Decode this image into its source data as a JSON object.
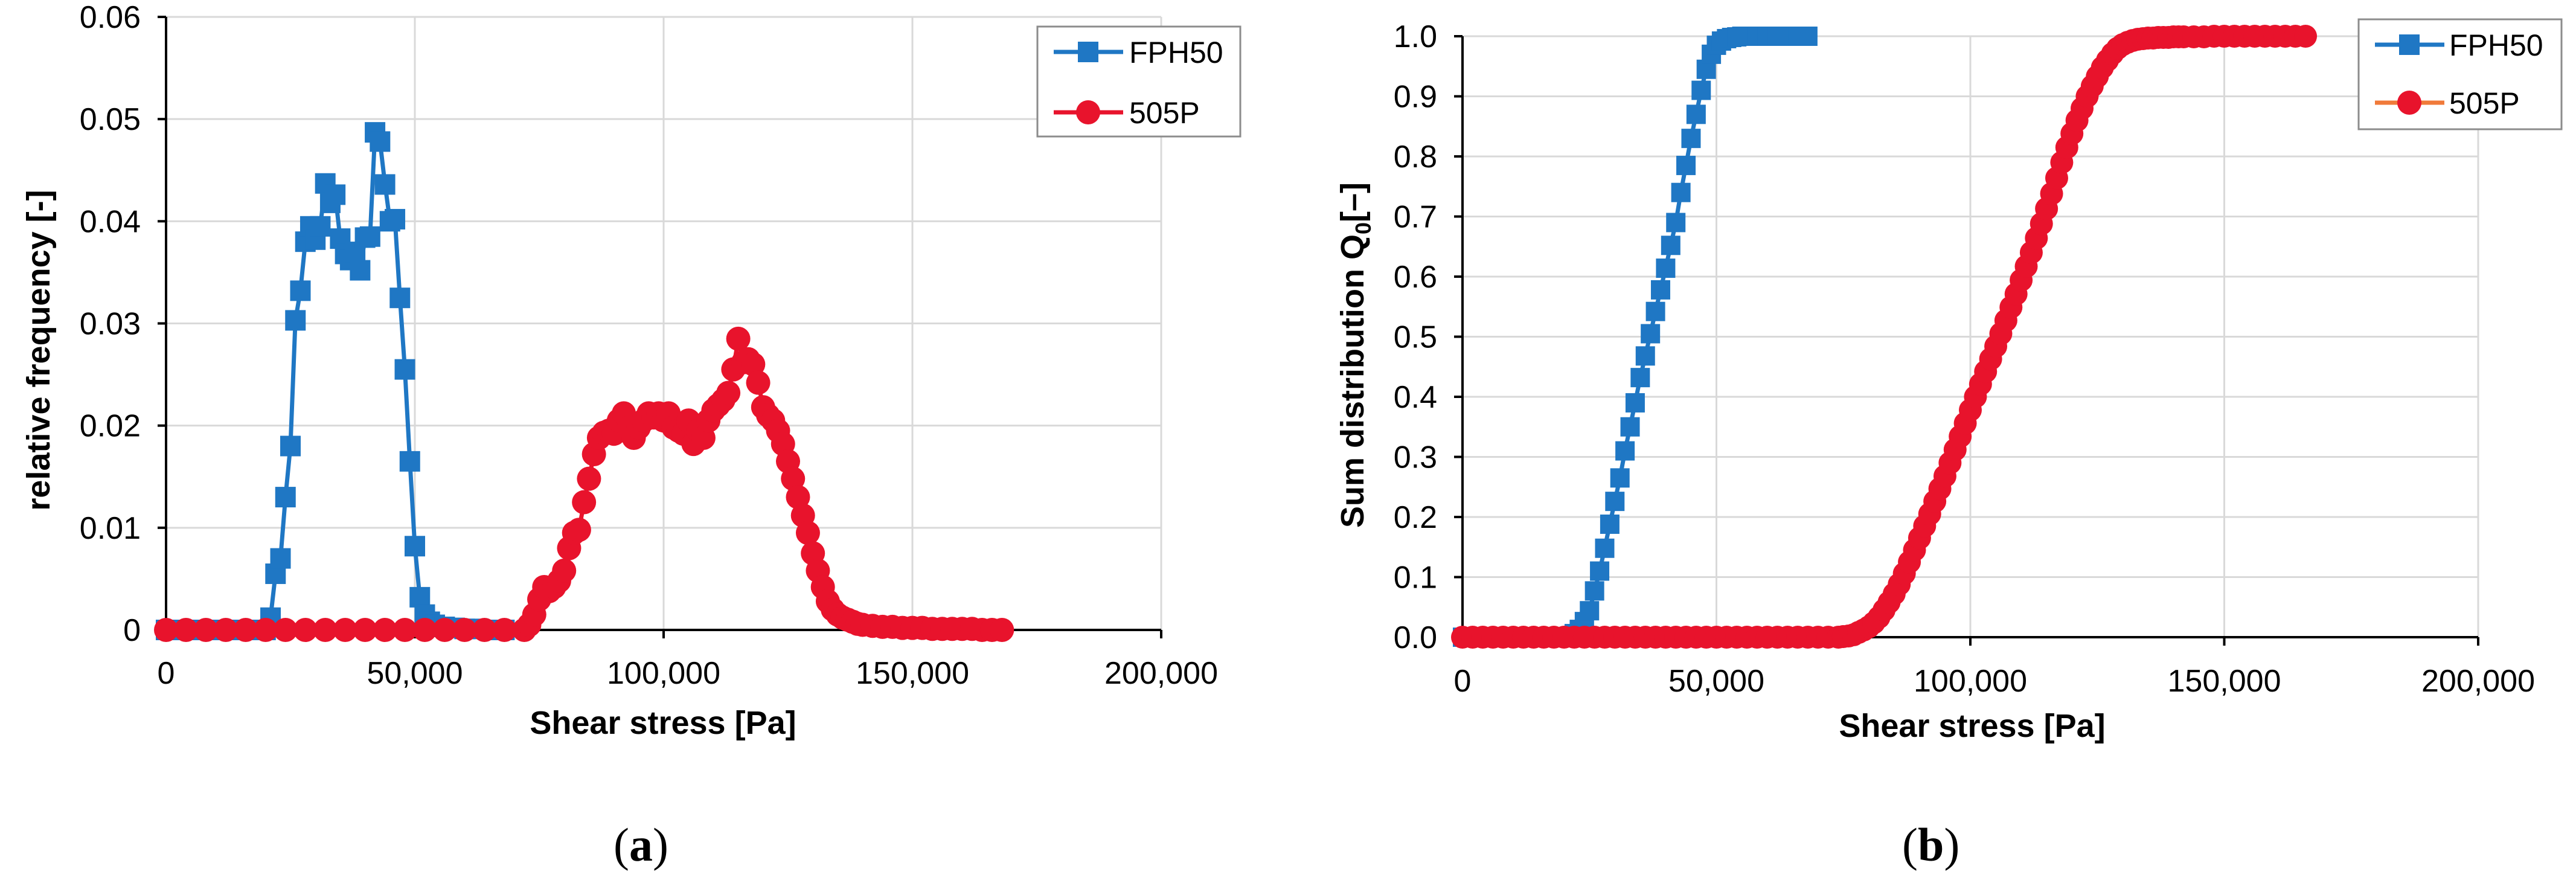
{
  "chart_data": [
    {
      "id": "a",
      "type": "line",
      "xlabel": "Shear stress [Pa]",
      "ylabel": "relative frequency [-]",
      "xlim": [
        0,
        200000
      ],
      "ylim": [
        0,
        0.06
      ],
      "xticks": [
        0,
        50000,
        100000,
        150000,
        200000
      ],
      "xtick_labels": [
        "0",
        "50,000",
        "100,000",
        "150,000",
        "200,000"
      ],
      "yticks": [
        0,
        0.01,
        0.02,
        0.03,
        0.04,
        0.05,
        0.06
      ],
      "ytick_labels": [
        "0",
        "0.01",
        "0.02",
        "0.03",
        "0.04",
        "0.05",
        "0.06"
      ],
      "grid": true,
      "legend_position": "top-right",
      "caption": "(a)",
      "series": [
        {
          "name": "FPH50",
          "color": "#1f77c4",
          "marker": "square",
          "x": [
            0,
            4000,
            8000,
            12000,
            16000,
            20000,
            21000,
            22000,
            23000,
            24000,
            25000,
            26000,
            27000,
            28000,
            29000,
            30000,
            31000,
            32000,
            33000,
            34000,
            35000,
            36000,
            37000,
            38000,
            39000,
            40000,
            41000,
            42000,
            43000,
            44000,
            45000,
            46000,
            47000,
            48000,
            49000,
            50000,
            51000,
            52000,
            53000,
            54000,
            56000,
            58000,
            60000,
            62000,
            65000,
            68000
          ],
          "y": [
            0,
            0,
            0,
            0,
            0,
            0,
            0.0012,
            0.0055,
            0.007,
            0.013,
            0.018,
            0.0303,
            0.0332,
            0.038,
            0.0395,
            0.0382,
            0.0395,
            0.0437,
            0.0418,
            0.0426,
            0.0383,
            0.0368,
            0.0362,
            0.037,
            0.0352,
            0.0384,
            0.0385,
            0.0487,
            0.0478,
            0.0436,
            0.04,
            0.0402,
            0.0325,
            0.0255,
            0.0165,
            0.0082,
            0.0032,
            0.0015,
            0.0008,
            0.0005,
            0.0003,
            0.0002,
            0.0001,
            0.0001,
            0,
            0
          ]
        },
        {
          "name": "505P",
          "color": "#e8132c",
          "marker": "circle",
          "x": [
            0,
            4000,
            8000,
            12000,
            16000,
            20000,
            24000,
            28000,
            32000,
            36000,
            40000,
            44000,
            48000,
            52000,
            56000,
            60000,
            64000,
            68000,
            72000,
            73000,
            74000,
            75000,
            76000,
            77000,
            78000,
            79000,
            80000,
            81000,
            82000,
            83000,
            84000,
            85000,
            86000,
            87000,
            88000,
            89000,
            90000,
            91000,
            92000,
            93000,
            94000,
            95000,
            96000,
            97000,
            98000,
            99000,
            100000,
            101000,
            102000,
            103000,
            104000,
            105000,
            106000,
            107000,
            108000,
            109000,
            110000,
            111000,
            112000,
            113000,
            114000,
            115000,
            116000,
            117000,
            118000,
            119000,
            120000,
            121000,
            122000,
            123000,
            124000,
            125000,
            126000,
            127000,
            128000,
            129000,
            130000,
            131000,
            132000,
            133000,
            134000,
            135000,
            136000,
            137000,
            138000,
            139000,
            140000,
            142000,
            144000,
            146000,
            148000,
            150000,
            152000,
            154000,
            156000,
            158000,
            160000,
            162000,
            164000,
            166000,
            168000
          ],
          "y": [
            0,
            0,
            0,
            0,
            0,
            0,
            0,
            0,
            0,
            0,
            0,
            0,
            0,
            0,
            0,
            0,
            0,
            0,
            0,
            0.0005,
            0.0015,
            0.003,
            0.0042,
            0.0038,
            0.0042,
            0.0048,
            0.0058,
            0.008,
            0.0095,
            0.0098,
            0.0125,
            0.0148,
            0.0172,
            0.0188,
            0.0193,
            0.0195,
            0.0192,
            0.0205,
            0.0212,
            0.0198,
            0.0188,
            0.0198,
            0.0205,
            0.0212,
            0.0208,
            0.0212,
            0.0205,
            0.0212,
            0.0198,
            0.0195,
            0.0192,
            0.0205,
            0.0182,
            0.0195,
            0.0188,
            0.0205,
            0.0215,
            0.022,
            0.0225,
            0.0232,
            0.0255,
            0.0285,
            0.0262,
            0.0265,
            0.026,
            0.0242,
            0.0218,
            0.021,
            0.0205,
            0.0195,
            0.0182,
            0.0165,
            0.0148,
            0.013,
            0.0112,
            0.0095,
            0.0075,
            0.0058,
            0.0042,
            0.0028,
            0.002,
            0.0015,
            0.0012,
            0.001,
            0.0008,
            0.0006,
            0.0005,
            0.0004,
            0.0003,
            0.0003,
            0.0002,
            0.0002,
            0.0002,
            0.0001,
            0.0001,
            0.0001,
            0.0001,
            0.0001,
            0,
            0,
            0
          ]
        }
      ]
    },
    {
      "id": "b",
      "type": "line",
      "xlabel": "Shear stress [Pa]",
      "ylabel_main": "Sum distribution Q",
      "ylabel_sub": "0",
      "ylabel_tail": "[–]",
      "xlim": [
        0,
        200000
      ],
      "ylim": [
        0,
        1.0
      ],
      "xticks": [
        0,
        50000,
        100000,
        150000,
        200000
      ],
      "xtick_labels": [
        "0",
        "50,000",
        "100,000",
        "150,000",
        "200,000"
      ],
      "yticks": [
        0,
        0.1,
        0.2,
        0.3,
        0.4,
        0.5,
        0.6,
        0.7,
        0.8,
        0.9,
        1.0
      ],
      "ytick_labels": [
        "0.0",
        "0.1",
        "0.2",
        "0.3",
        "0.4",
        "0.5",
        "0.6",
        "0.7",
        "0.8",
        "0.9",
        "1.0"
      ],
      "grid": true,
      "legend_position": "top-right",
      "caption": "(b)",
      "series": [
        {
          "name": "FPH50",
          "color": "#1f77c4",
          "marker": "square",
          "x": [
            0,
            2000,
            4000,
            6000,
            8000,
            10000,
            12000,
            14000,
            16000,
            18000,
            20000,
            21000,
            22000,
            23000,
            24000,
            25000,
            26000,
            27000,
            28000,
            29000,
            30000,
            31000,
            32000,
            33000,
            34000,
            35000,
            36000,
            37000,
            38000,
            39000,
            40000,
            41000,
            42000,
            43000,
            44000,
            45000,
            46000,
            47000,
            48000,
            49000,
            50000,
            51000,
            52000,
            53000,
            54000,
            55000,
            56000,
            58000,
            60000,
            62000,
            64000,
            66000,
            68000
          ],
          "y": [
            0,
            0,
            0,
            0,
            0,
            0,
            0,
            0,
            0,
            0,
            0,
            0.001,
            0.006,
            0.013,
            0.026,
            0.044,
            0.077,
            0.11,
            0.148,
            0.188,
            0.226,
            0.265,
            0.31,
            0.35,
            0.39,
            0.432,
            0.468,
            0.505,
            0.542,
            0.578,
            0.614,
            0.652,
            0.69,
            0.74,
            0.785,
            0.83,
            0.87,
            0.91,
            0.945,
            0.97,
            0.985,
            0.992,
            0.996,
            0.998,
            0.999,
            1.0,
            1.0,
            1.0,
            1.0,
            1.0,
            1.0,
            1.0,
            1.0
          ]
        },
        {
          "name": "505P",
          "color": "#e8132c",
          "legend_line_color": "#f07a3a",
          "marker": "circle",
          "x": [
            0,
            2000,
            4000,
            6000,
            8000,
            10000,
            12000,
            14000,
            16000,
            18000,
            20000,
            22000,
            24000,
            26000,
            28000,
            30000,
            32000,
            34000,
            36000,
            38000,
            40000,
            42000,
            44000,
            46000,
            48000,
            50000,
            52000,
            54000,
            56000,
            58000,
            60000,
            62000,
            64000,
            66000,
            68000,
            70000,
            72000,
            74000,
            75000,
            76000,
            77000,
            78000,
            79000,
            80000,
            81000,
            82000,
            83000,
            84000,
            85000,
            86000,
            87000,
            88000,
            89000,
            90000,
            91000,
            92000,
            93000,
            94000,
            95000,
            96000,
            97000,
            98000,
            99000,
            100000,
            101000,
            102000,
            103000,
            104000,
            105000,
            106000,
            107000,
            108000,
            109000,
            110000,
            111000,
            112000,
            113000,
            114000,
            115000,
            116000,
            117000,
            118000,
            119000,
            120000,
            121000,
            122000,
            123000,
            124000,
            125000,
            126000,
            127000,
            128000,
            129000,
            130000,
            131000,
            132000,
            133000,
            134000,
            135000,
            136000,
            137000,
            138000,
            139000,
            140000,
            141000,
            142000,
            144000,
            146000,
            148000,
            150000,
            152000,
            154000,
            156000,
            158000,
            160000,
            162000,
            164000,
            166000
          ],
          "y": [
            0,
            0,
            0,
            0,
            0,
            0,
            0,
            0,
            0,
            0,
            0,
            0,
            0,
            0,
            0,
            0,
            0,
            0,
            0,
            0,
            0,
            0,
            0,
            0,
            0,
            0,
            0,
            0,
            0,
            0,
            0,
            0,
            0,
            0,
            0,
            0,
            0,
            0,
            0.001,
            0.002,
            0.004,
            0.008,
            0.012,
            0.017,
            0.024,
            0.033,
            0.045,
            0.058,
            0.072,
            0.088,
            0.106,
            0.125,
            0.145,
            0.165,
            0.185,
            0.205,
            0.226,
            0.247,
            0.268,
            0.29,
            0.312,
            0.334,
            0.356,
            0.378,
            0.4,
            0.421,
            0.442,
            0.463,
            0.484,
            0.505,
            0.527,
            0.549,
            0.571,
            0.594,
            0.617,
            0.64,
            0.664,
            0.688,
            0.713,
            0.738,
            0.764,
            0.79,
            0.815,
            0.838,
            0.86,
            0.88,
            0.9,
            0.917,
            0.933,
            0.948,
            0.96,
            0.971,
            0.98,
            0.986,
            0.99,
            0.993,
            0.995,
            0.996,
            0.997,
            0.997,
            0.998,
            0.998,
            0.998,
            0.999,
            0.999,
            0.999,
            0.999,
            0.999,
            1.0,
            1.0,
            1.0,
            1.0,
            1.0,
            1.0,
            1.0,
            1.0,
            1.0,
            1.0
          ]
        }
      ]
    }
  ]
}
